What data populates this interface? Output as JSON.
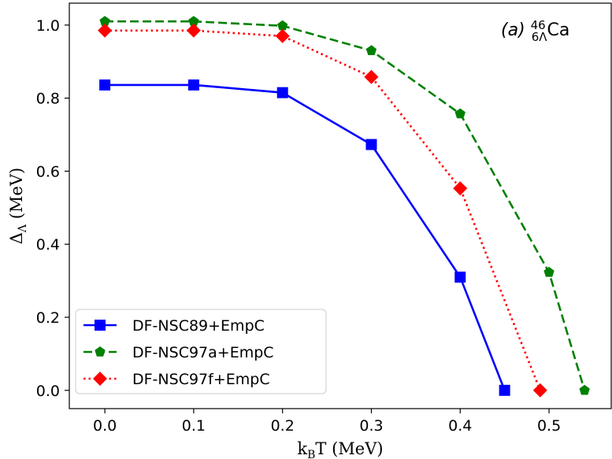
{
  "chart_data": {
    "type": "line",
    "xlabel": {
      "main": "k",
      "sub": "B",
      "rest": "T (MeV)"
    },
    "ylabel": {
      "main": "Δ",
      "sub": "Λ",
      "rest": " (MeV)"
    },
    "xlim": [
      -0.04,
      0.57
    ],
    "ylim": [
      -0.05,
      1.06
    ],
    "x_ticks": [
      0.0,
      0.1,
      0.2,
      0.3,
      0.4,
      0.5
    ],
    "x_tick_labels": [
      "0.0",
      "0.1",
      "0.2",
      "0.3",
      "0.4",
      "0.5"
    ],
    "y_ticks": [
      0.0,
      0.2,
      0.4,
      0.6,
      0.8,
      1.0
    ],
    "y_tick_labels": [
      "0.0",
      "0.2",
      "0.4",
      "0.6",
      "0.8",
      "1.0"
    ],
    "grid": false,
    "legend_position": "lower-left",
    "annotation": {
      "prefix": "(a) ",
      "mass": "46",
      "sub": "6Λ",
      "element": "Ca"
    },
    "series": [
      {
        "name": "DF-NSC89+EmpC",
        "color": "#0000ff",
        "line_style": "solid",
        "marker": "square",
        "x": [
          0.0,
          0.1,
          0.2,
          0.3,
          0.4,
          0.45
        ],
        "y": [
          0.836,
          0.836,
          0.815,
          0.673,
          0.31,
          0.0
        ]
      },
      {
        "name": "DF-NSC97a+EmpC",
        "color": "#008000",
        "line_style": "dashed",
        "marker": "pentagon",
        "x": [
          0.0,
          0.1,
          0.2,
          0.3,
          0.4,
          0.5,
          0.54
        ],
        "y": [
          1.01,
          1.01,
          0.998,
          0.93,
          0.757,
          0.323,
          0.0
        ]
      },
      {
        "name": "DF-NSC97f+EmpC",
        "color": "#ff0000",
        "line_style": "dotted",
        "marker": "diamond",
        "x": [
          0.0,
          0.1,
          0.2,
          0.3,
          0.4,
          0.49
        ],
        "y": [
          0.985,
          0.985,
          0.97,
          0.858,
          0.553,
          0.0
        ]
      }
    ]
  }
}
